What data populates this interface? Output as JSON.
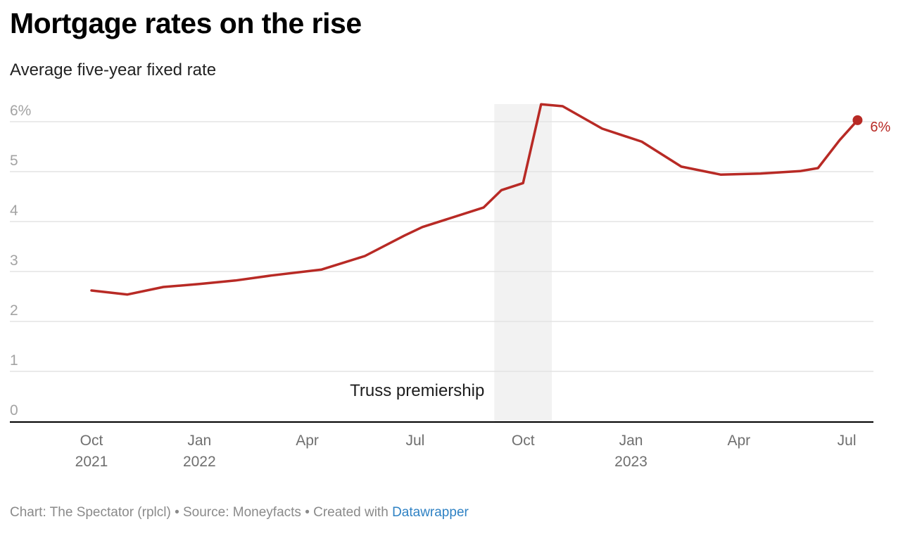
{
  "title": "Mortgage rates on the rise",
  "subtitle": "Average five-year fixed rate",
  "footer": {
    "text": "Chart: The Spectator (rplcl) • Source: Moneyfacts • Created with ",
    "link": "Datawrapper"
  },
  "colors": {
    "line": "#b82a25",
    "grid": "#e3e3e3",
    "shade": "#f2f2f2",
    "axis": "#000000",
    "link": "#2f82c4"
  },
  "chart_data": {
    "type": "line",
    "title": "Mortgage rates on the rise",
    "subtitle": "Average five-year fixed rate",
    "xlabel": "",
    "ylabel": "",
    "ylim": [
      0,
      6.4
    ],
    "grid": true,
    "yticks": [
      {
        "value": 0,
        "label": "0"
      },
      {
        "value": 1,
        "label": "1"
      },
      {
        "value": 2,
        "label": "2"
      },
      {
        "value": 3,
        "label": "3"
      },
      {
        "value": 4,
        "label": "4"
      },
      {
        "value": 5,
        "label": "5"
      },
      {
        "value": 6,
        "label": "6%"
      }
    ],
    "xlim_months": [
      -2.3,
      22
    ],
    "xticks": [
      {
        "month": 0,
        "label": "Oct",
        "year": "2021"
      },
      {
        "month": 3,
        "label": "Jan",
        "year": "2022"
      },
      {
        "month": 6,
        "label": "Apr",
        "year": ""
      },
      {
        "month": 9,
        "label": "Jul",
        "year": ""
      },
      {
        "month": 12,
        "label": "Oct",
        "year": ""
      },
      {
        "month": 15,
        "label": "Jan",
        "year": "2023"
      },
      {
        "month": 18,
        "label": "Apr",
        "year": ""
      },
      {
        "month": 21,
        "label": "Jul",
        "year": ""
      }
    ],
    "series": [
      {
        "name": "Average five-year fixed rate",
        "x_months": [
          0,
          1,
          2,
          3,
          4,
          5,
          6.4,
          7.6,
          8.7,
          9.2,
          10.9,
          11.4,
          12,
          12.5,
          13.1,
          14.2,
          15.3,
          16.4,
          17.5,
          18.6,
          19.7,
          20.2,
          20.8,
          21.3
        ],
        "values": [
          2.62,
          2.54,
          2.69,
          2.75,
          2.82,
          2.92,
          3.04,
          3.31,
          3.72,
          3.89,
          4.28,
          4.63,
          4.77,
          6.35,
          6.31,
          5.86,
          5.6,
          5.1,
          4.94,
          4.96,
          5.01,
          5.07,
          5.63,
          6.03
        ]
      }
    ],
    "shaded_region": {
      "label": "Truss premiership",
      "start_month": 11.2,
      "end_month": 12.8
    },
    "end_label": "6%"
  }
}
